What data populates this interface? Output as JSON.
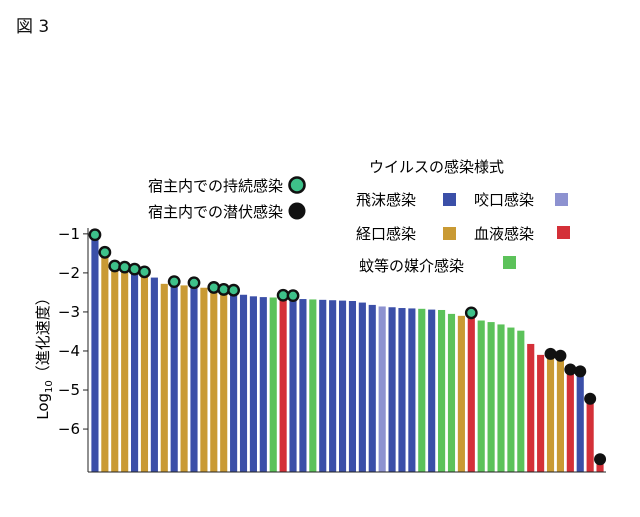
{
  "figure_label": "図 3",
  "chart_data": {
    "type": "bar",
    "ylabel_main": "Log",
    "ylabel_sub": "10",
    "ylabel_rest": "（進化速度）",
    "ylim": [
      -7.1,
      -0.85
    ],
    "yticks": [
      -1,
      -2,
      -3,
      -4,
      -5,
      -6
    ],
    "ytick_labels": [
      "−1",
      "−2",
      "−3",
      "−4",
      "−5",
      "−6"
    ],
    "grid": false,
    "colors": {
      "飛沫感染": "#3b4fa8",
      "咬口感染": "#8d92d0",
      "経口感染": "#c99a34",
      "血液感染": "#d43038",
      "蚊等の媒介感染": "#5cc25a"
    },
    "legend_markers": {
      "title": null,
      "items": [
        {
          "label": "宿主内での持続感染",
          "marker": "persistent"
        },
        {
          "label": "宿主内での潜伏感染",
          "marker": "latent"
        }
      ]
    },
    "legend_routes": {
      "title": "ウイルスの感染様式",
      "items": [
        {
          "label": "飛沫感染",
          "route": "飛沫感染"
        },
        {
          "label": "咬口感染",
          "route": "咬口感染"
        },
        {
          "label": "経口感染",
          "route": "経口感染"
        },
        {
          "label": "血液感染",
          "route": "血液感染"
        },
        {
          "label": "蚊等の媒介感染",
          "route": "蚊等の媒介感染"
        }
      ]
    },
    "bars": [
      {
        "value": -1.1,
        "route": "飛沫感染",
        "marker": "persistent"
      },
      {
        "value": -1.55,
        "route": "経口感染",
        "marker": "persistent"
      },
      {
        "value": -1.9,
        "route": "経口感染",
        "marker": "persistent"
      },
      {
        "value": -1.93,
        "route": "経口感染",
        "marker": "persistent"
      },
      {
        "value": -1.98,
        "route": "飛沫感染",
        "marker": "persistent"
      },
      {
        "value": -2.05,
        "route": "経口感染",
        "marker": "persistent"
      },
      {
        "value": -2.12,
        "route": "飛沫感染",
        "marker": null
      },
      {
        "value": -2.28,
        "route": "経口感染",
        "marker": null
      },
      {
        "value": -2.3,
        "route": "飛沫感染",
        "marker": "persistent"
      },
      {
        "value": -2.32,
        "route": "経口感染",
        "marker": null
      },
      {
        "value": -2.33,
        "route": "飛沫感染",
        "marker": "persistent"
      },
      {
        "value": -2.38,
        "route": "経口感染",
        "marker": null
      },
      {
        "value": -2.45,
        "route": "経口感染",
        "marker": "persistent"
      },
      {
        "value": -2.5,
        "route": "経口感染",
        "marker": "persistent"
      },
      {
        "value": -2.52,
        "route": "飛沫感染",
        "marker": "persistent"
      },
      {
        "value": -2.56,
        "route": "飛沫感染",
        "marker": null
      },
      {
        "value": -2.6,
        "route": "飛沫感染",
        "marker": null
      },
      {
        "value": -2.62,
        "route": "飛沫感染",
        "marker": null
      },
      {
        "value": -2.63,
        "route": "蚊等の媒介感染",
        "marker": null
      },
      {
        "value": -2.65,
        "route": "血液感染",
        "marker": "persistent"
      },
      {
        "value": -2.66,
        "route": "飛沫感染",
        "marker": "persistent"
      },
      {
        "value": -2.67,
        "route": "飛沫感染",
        "marker": null
      },
      {
        "value": -2.68,
        "route": "蚊等の媒介感染",
        "marker": null
      },
      {
        "value": -2.69,
        "route": "飛沫感染",
        "marker": null
      },
      {
        "value": -2.7,
        "route": "飛沫感染",
        "marker": null
      },
      {
        "value": -2.71,
        "route": "飛沫感染",
        "marker": null
      },
      {
        "value": -2.72,
        "route": "飛沫感染",
        "marker": null
      },
      {
        "value": -2.76,
        "route": "飛沫感染",
        "marker": null
      },
      {
        "value": -2.82,
        "route": "飛沫感染",
        "marker": null
      },
      {
        "value": -2.86,
        "route": "咬口感染",
        "marker": null
      },
      {
        "value": -2.88,
        "route": "飛沫感染",
        "marker": null
      },
      {
        "value": -2.9,
        "route": "飛沫感染",
        "marker": null
      },
      {
        "value": -2.91,
        "route": "飛沫感染",
        "marker": null
      },
      {
        "value": -2.92,
        "route": "蚊等の媒介感染",
        "marker": null
      },
      {
        "value": -2.94,
        "route": "飛沫感染",
        "marker": null
      },
      {
        "value": -2.95,
        "route": "蚊等の媒介感染",
        "marker": null
      },
      {
        "value": -3.05,
        "route": "蚊等の媒介感染",
        "marker": null
      },
      {
        "value": -3.1,
        "route": "経口感染",
        "marker": null
      },
      {
        "value": -3.1,
        "route": "血液感染",
        "marker": "persistent"
      },
      {
        "value": -3.22,
        "route": "蚊等の媒介感染",
        "marker": null
      },
      {
        "value": -3.26,
        "route": "蚊等の媒介感染",
        "marker": null
      },
      {
        "value": -3.32,
        "route": "蚊等の媒介感染",
        "marker": null
      },
      {
        "value": -3.4,
        "route": "蚊等の媒介感染",
        "marker": null
      },
      {
        "value": -3.48,
        "route": "蚊等の媒介感染",
        "marker": null
      },
      {
        "value": -3.82,
        "route": "血液感染",
        "marker": null
      },
      {
        "value": -4.1,
        "route": "血液感染",
        "marker": null
      },
      {
        "value": -4.15,
        "route": "経口感染",
        "marker": "latent"
      },
      {
        "value": -4.2,
        "route": "経口感染",
        "marker": "latent"
      },
      {
        "value": -4.55,
        "route": "血液感染",
        "marker": "latent"
      },
      {
        "value": -4.6,
        "route": "飛沫感染",
        "marker": "latent"
      },
      {
        "value": -5.3,
        "route": "血液感染",
        "marker": "latent"
      },
      {
        "value": -6.85,
        "route": "血液感染",
        "marker": "latent"
      }
    ]
  }
}
